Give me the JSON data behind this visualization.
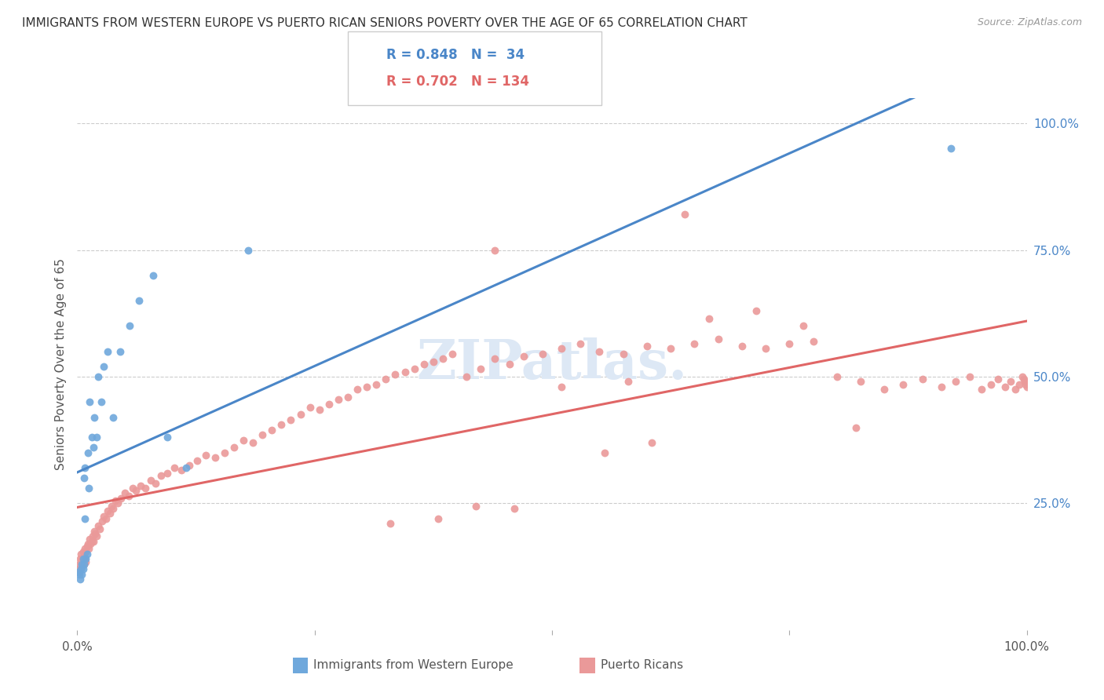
{
  "title": "IMMIGRANTS FROM WESTERN EUROPE VS PUERTO RICAN SENIORS POVERTY OVER THE AGE OF 65 CORRELATION CHART",
  "source": "Source: ZipAtlas.com",
  "ylabel": "Seniors Poverty Over the Age of 65",
  "blue_R": 0.848,
  "blue_N": 34,
  "pink_R": 0.702,
  "pink_N": 134,
  "blue_color": "#6fa8dc",
  "pink_color": "#ea9999",
  "blue_line_color": "#4a86c8",
  "pink_line_color": "#e06666",
  "legend_label_blue": "Immigrants from Western Europe",
  "legend_label_pink": "Puerto Ricans",
  "background_color": "#ffffff",
  "blue_scatter_x": [
    0.001,
    0.002,
    0.003,
    0.004,
    0.005,
    0.005,
    0.006,
    0.006,
    0.007,
    0.007,
    0.008,
    0.008,
    0.009,
    0.01,
    0.011,
    0.012,
    0.013,
    0.015,
    0.017,
    0.018,
    0.02,
    0.022,
    0.025,
    0.028,
    0.032,
    0.038,
    0.045,
    0.055,
    0.065,
    0.08,
    0.095,
    0.115,
    0.18,
    0.92
  ],
  "blue_scatter_y": [
    0.115,
    0.11,
    0.1,
    0.12,
    0.13,
    0.11,
    0.12,
    0.14,
    0.3,
    0.13,
    0.32,
    0.22,
    0.14,
    0.15,
    0.35,
    0.28,
    0.45,
    0.38,
    0.36,
    0.42,
    0.38,
    0.5,
    0.45,
    0.52,
    0.55,
    0.42,
    0.55,
    0.6,
    0.65,
    0.7,
    0.38,
    0.32,
    0.75,
    0.95
  ],
  "pink_scatter_x": [
    0.001,
    0.001,
    0.002,
    0.002,
    0.003,
    0.003,
    0.004,
    0.004,
    0.005,
    0.005,
    0.006,
    0.006,
    0.007,
    0.007,
    0.008,
    0.008,
    0.009,
    0.009,
    0.01,
    0.011,
    0.012,
    0.013,
    0.014,
    0.015,
    0.016,
    0.017,
    0.018,
    0.019,
    0.02,
    0.022,
    0.024,
    0.026,
    0.028,
    0.03,
    0.032,
    0.034,
    0.036,
    0.038,
    0.04,
    0.043,
    0.046,
    0.05,
    0.054,
    0.058,
    0.062,
    0.067,
    0.072,
    0.077,
    0.082,
    0.088,
    0.095,
    0.102,
    0.11,
    0.118,
    0.126,
    0.135,
    0.145,
    0.155,
    0.165,
    0.175,
    0.185,
    0.195,
    0.205,
    0.215,
    0.225,
    0.235,
    0.245,
    0.255,
    0.265,
    0.275,
    0.285,
    0.295,
    0.305,
    0.315,
    0.325,
    0.335,
    0.345,
    0.355,
    0.365,
    0.375,
    0.385,
    0.395,
    0.41,
    0.425,
    0.44,
    0.455,
    0.47,
    0.49,
    0.51,
    0.53,
    0.55,
    0.575,
    0.6,
    0.625,
    0.65,
    0.675,
    0.7,
    0.725,
    0.75,
    0.775,
    0.8,
    0.825,
    0.85,
    0.87,
    0.89,
    0.91,
    0.925,
    0.94,
    0.952,
    0.962,
    0.97,
    0.977,
    0.983,
    0.988,
    0.992,
    0.995,
    0.997,
    0.998,
    0.999,
    1.0,
    0.44,
    0.51,
    0.58,
    0.64,
    0.33,
    0.38,
    0.42,
    0.46,
    0.555,
    0.605,
    0.665,
    0.715,
    0.765,
    0.82
  ],
  "pink_scatter_y": [
    0.115,
    0.12,
    0.13,
    0.115,
    0.14,
    0.12,
    0.135,
    0.15,
    0.125,
    0.14,
    0.135,
    0.155,
    0.145,
    0.13,
    0.16,
    0.14,
    0.155,
    0.135,
    0.165,
    0.17,
    0.16,
    0.18,
    0.17,
    0.175,
    0.185,
    0.175,
    0.195,
    0.19,
    0.185,
    0.205,
    0.2,
    0.215,
    0.225,
    0.22,
    0.235,
    0.23,
    0.245,
    0.24,
    0.255,
    0.25,
    0.26,
    0.27,
    0.265,
    0.28,
    0.275,
    0.285,
    0.28,
    0.295,
    0.29,
    0.305,
    0.31,
    0.32,
    0.315,
    0.325,
    0.335,
    0.345,
    0.34,
    0.35,
    0.36,
    0.375,
    0.37,
    0.385,
    0.395,
    0.405,
    0.415,
    0.425,
    0.44,
    0.435,
    0.445,
    0.455,
    0.46,
    0.475,
    0.48,
    0.485,
    0.495,
    0.505,
    0.51,
    0.515,
    0.525,
    0.53,
    0.535,
    0.545,
    0.5,
    0.515,
    0.535,
    0.525,
    0.54,
    0.545,
    0.555,
    0.565,
    0.55,
    0.545,
    0.56,
    0.555,
    0.565,
    0.575,
    0.56,
    0.555,
    0.565,
    0.57,
    0.5,
    0.49,
    0.475,
    0.485,
    0.495,
    0.48,
    0.49,
    0.5,
    0.475,
    0.485,
    0.495,
    0.48,
    0.49,
    0.475,
    0.485,
    0.5,
    0.495,
    0.49,
    0.485,
    0.48,
    0.75,
    0.48,
    0.49,
    0.82,
    0.21,
    0.22,
    0.245,
    0.24,
    0.35,
    0.37,
    0.615,
    0.63,
    0.6,
    0.4
  ]
}
